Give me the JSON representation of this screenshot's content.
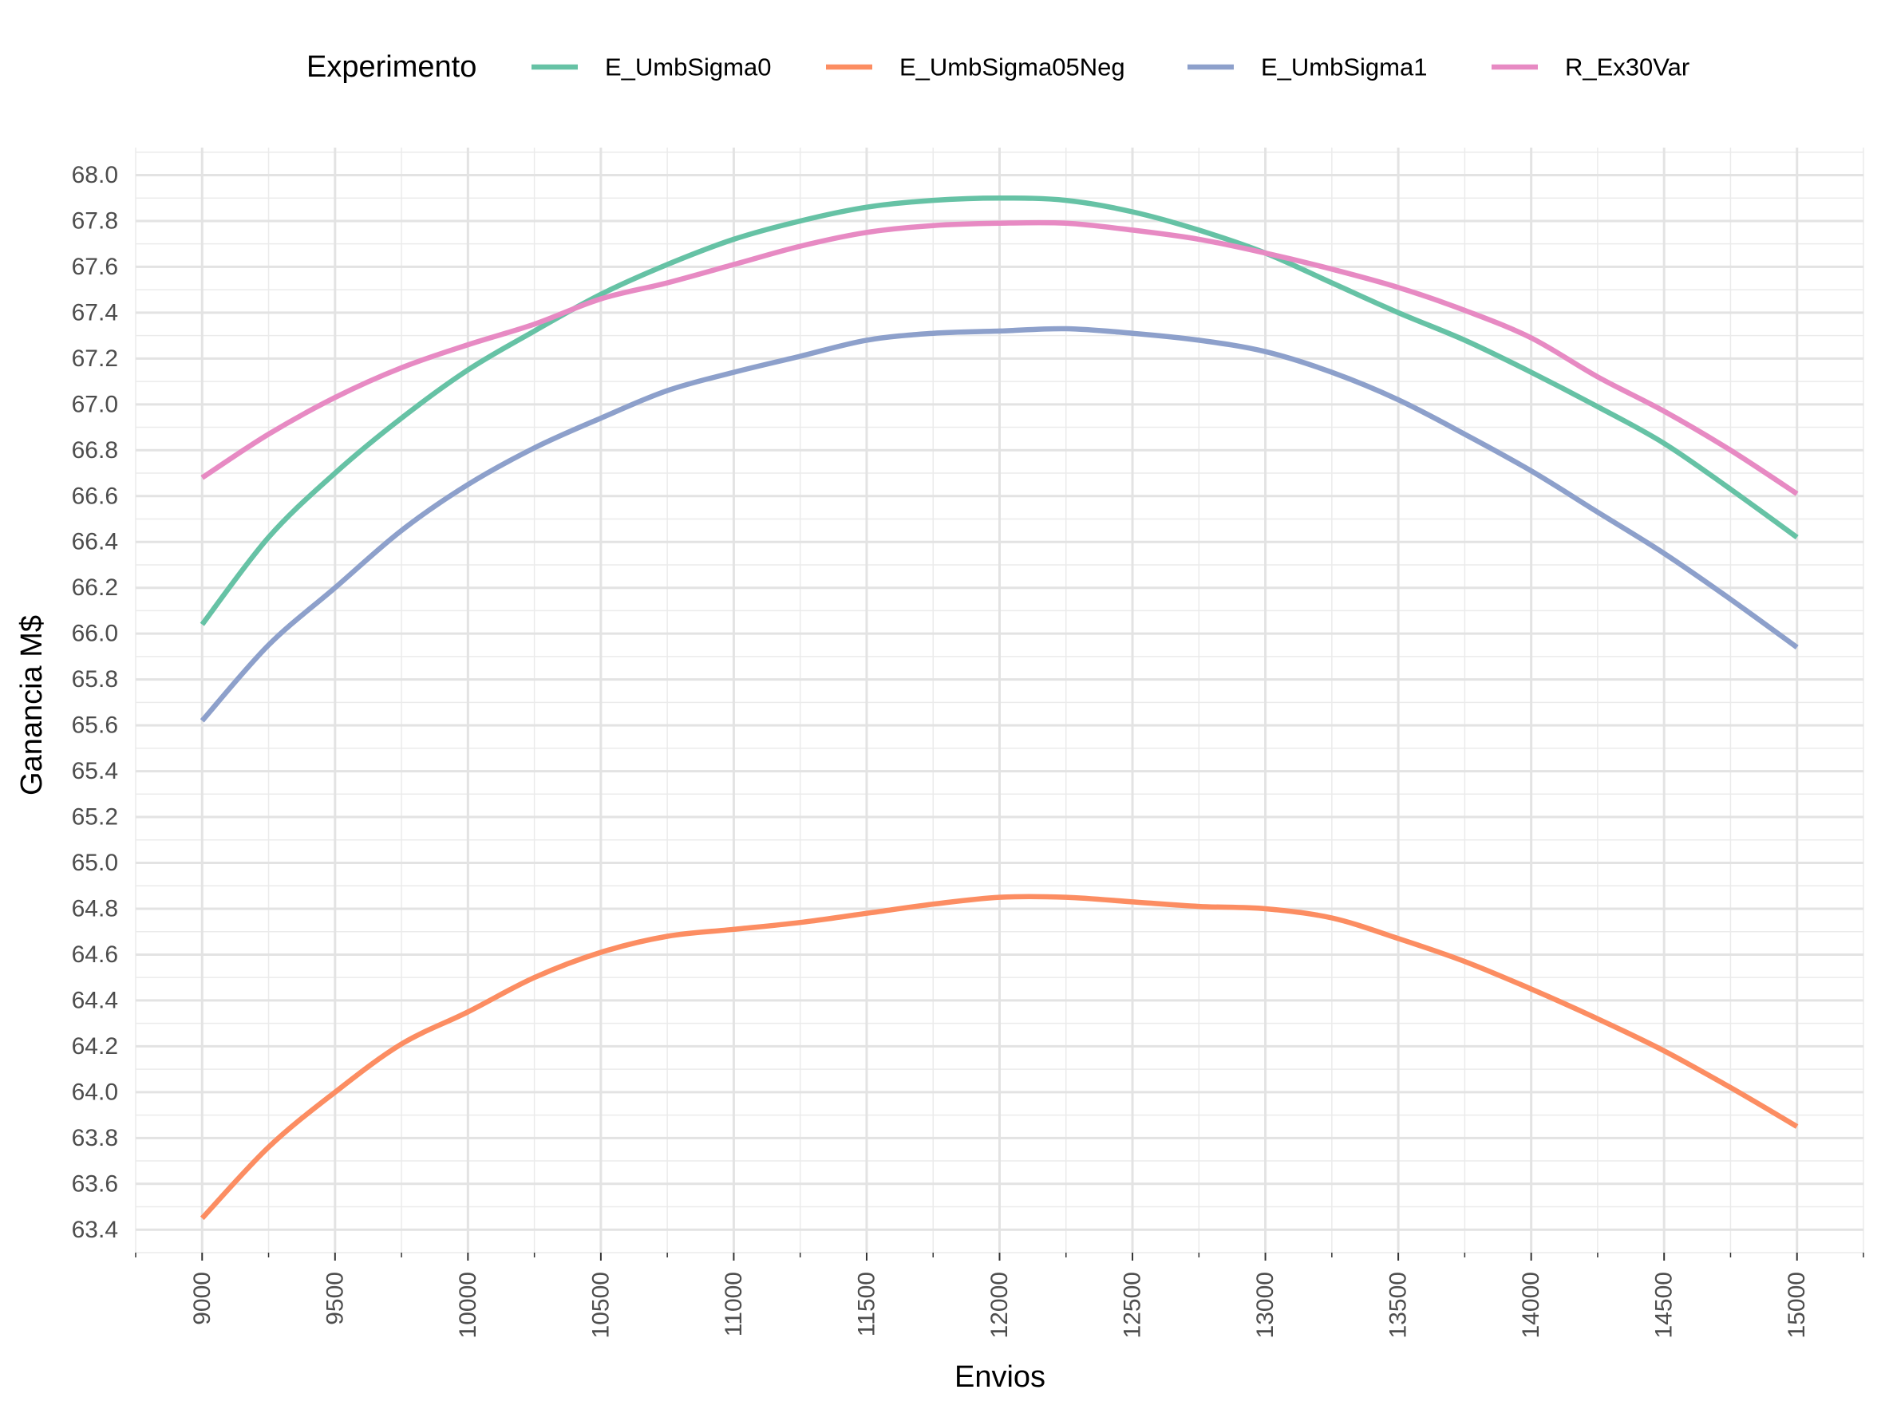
{
  "chart_data": {
    "type": "line",
    "xlabel": "Envios",
    "ylabel": "Ganancia M$",
    "xlim": [
      8750,
      15250
    ],
    "ylim": [
      63.3,
      68.12
    ],
    "x_ticks": [
      9000,
      9500,
      10000,
      10500,
      11000,
      11500,
      12000,
      12500,
      13000,
      13500,
      14000,
      14500,
      15000
    ],
    "y_ticks": [
      63.4,
      63.6,
      63.8,
      64.0,
      64.2,
      64.4,
      64.6,
      64.8,
      65.0,
      65.2,
      65.4,
      65.6,
      65.8,
      66.0,
      66.2,
      66.4,
      66.6,
      66.8,
      67.0,
      67.2,
      67.4,
      67.6,
      67.8,
      68.0
    ],
    "y_tick_labels": [
      "63.4",
      "63.6",
      "63.8",
      "64.0",
      "64.2",
      "64.4",
      "64.6",
      "64.8",
      "65.0",
      "65.2",
      "65.4",
      "65.6",
      "65.8",
      "66.0",
      "66.2",
      "66.4",
      "66.6",
      "66.8",
      "67.0",
      "67.2",
      "67.4",
      "67.6",
      "67.8",
      "68.0"
    ],
    "grid": true,
    "legend": {
      "title": "Experimento",
      "position": "top"
    },
    "x": [
      9000,
      9250,
      9500,
      9750,
      10000,
      10250,
      10500,
      10750,
      11000,
      11250,
      11500,
      11750,
      12000,
      12250,
      12500,
      12750,
      13000,
      13250,
      13500,
      13750,
      14000,
      14250,
      14500,
      14750,
      15000
    ],
    "series": [
      {
        "name": "E_UmbSigma0",
        "color": "#66c2a5",
        "values": [
          66.04,
          66.42,
          66.7,
          66.94,
          67.15,
          67.32,
          67.48,
          67.61,
          67.72,
          67.8,
          67.86,
          67.89,
          67.9,
          67.89,
          67.84,
          67.76,
          67.66,
          67.53,
          67.4,
          67.28,
          67.14,
          66.99,
          66.83,
          66.63,
          66.42
        ]
      },
      {
        "name": "E_UmbSigma05Neg",
        "color": "#fc8d62",
        "values": [
          63.45,
          63.76,
          64.0,
          64.21,
          64.35,
          64.5,
          64.61,
          64.68,
          64.71,
          64.74,
          64.78,
          64.82,
          64.85,
          64.85,
          64.83,
          64.81,
          64.8,
          64.76,
          64.67,
          64.57,
          64.45,
          64.32,
          64.18,
          64.02,
          63.85
        ]
      },
      {
        "name": "E_UmbSigma1",
        "color": "#8da0cb",
        "values": [
          65.62,
          65.95,
          66.2,
          66.45,
          66.65,
          66.81,
          66.94,
          67.06,
          67.14,
          67.21,
          67.28,
          67.31,
          67.32,
          67.33,
          67.31,
          67.28,
          67.23,
          67.14,
          67.02,
          66.87,
          66.71,
          66.53,
          66.35,
          66.15,
          65.94
        ]
      },
      {
        "name": "R_Ex30Var",
        "color": "#e78ac3",
        "values": [
          66.68,
          66.87,
          67.03,
          67.16,
          67.26,
          67.35,
          67.46,
          67.53,
          67.61,
          67.69,
          67.75,
          67.78,
          67.79,
          67.79,
          67.76,
          67.72,
          67.66,
          67.59,
          67.51,
          67.41,
          67.29,
          67.12,
          66.97,
          66.8,
          66.61
        ]
      }
    ]
  }
}
